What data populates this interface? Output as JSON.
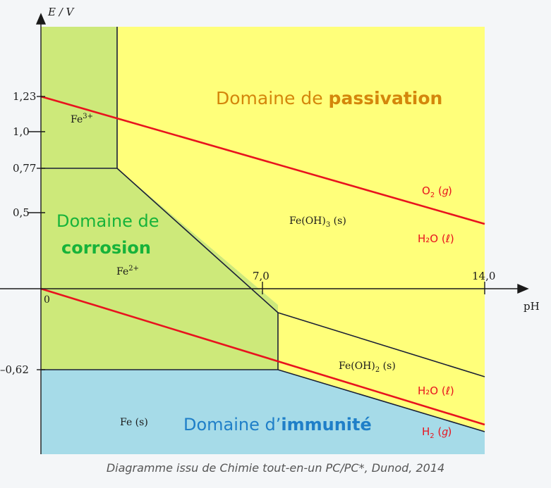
{
  "axes": {
    "y_label": "E / V",
    "x_label": "pH",
    "origin_label": "0",
    "y_ticks": [
      {
        "value": 1.23,
        "label": "1,23"
      },
      {
        "value": 1.0,
        "label": "1,0"
      },
      {
        "value": 0.77,
        "label": "0,77"
      },
      {
        "value": 0.5,
        "label": "0,5"
      },
      {
        "value": -0.62,
        "label": "–0,62"
      }
    ],
    "x_ticks": [
      {
        "value": 7.0,
        "label": "7,0"
      },
      {
        "value": 14.0,
        "label": "14,0"
      }
    ]
  },
  "domains": {
    "passivation": {
      "prefix": "Domaine de ",
      "bold": "passivation",
      "color": "#d4860b"
    },
    "corrosion": {
      "line1": "Domaine de",
      "line2": "corrosion",
      "color": "#17b33a"
    },
    "immunite": {
      "prefix": "Domaine d’",
      "bold": "immunité",
      "color": "#1f7fc8"
    }
  },
  "species": {
    "fe3": {
      "base": "Fe",
      "sup": "3+"
    },
    "fe2": {
      "base": "Fe",
      "sup": "2+"
    },
    "feoh3": {
      "base": "Fe(OH)",
      "sub": "3",
      "tail": " (s)"
    },
    "feoh2": {
      "base": "Fe(OH)",
      "sub": "2",
      "tail": " (s)"
    },
    "fe_s": "Fe (s)"
  },
  "water_labels": {
    "o2": {
      "base": "O",
      "sub": "2",
      "tail": " (𝑔)"
    },
    "h2o_top": "H₂O (ℓ)",
    "h2o_bottom": "H₂O (ℓ)",
    "h2": {
      "base": "H",
      "sub": "2",
      "tail": " (𝑔)"
    }
  },
  "colors": {
    "passivation_fill": "#ffff7a",
    "corrosion_fill": "#cde97a",
    "immunite_fill": "#a6dbe8",
    "water_line": "#e8131e",
    "water_label": "#e8131e",
    "boundary": "#1a1f36"
  },
  "caption": "Diagramme issu de Chimie tout-en-un PC/PC*, Dunod, 2014"
}
